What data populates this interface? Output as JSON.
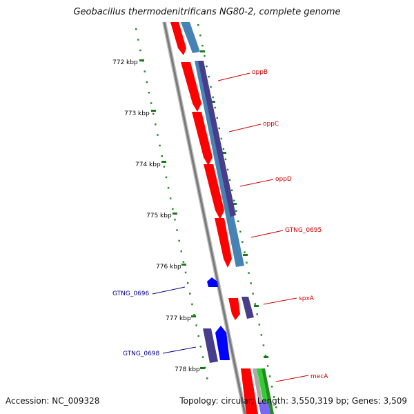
{
  "title": "Geobacillus thermodenitrificans NG80-2, complete genome",
  "accession": "Accession: NC_009328",
  "summary": "Topology: circular; Length: 3,550,319 bp; Genes: 3,509",
  "kbp_labels": [
    "772 kbp",
    "773 kbp",
    "774 kbp",
    "775 kbp",
    "776 kbp",
    "777 kbp",
    "778 kbp"
  ],
  "forward_genes": [
    {
      "name": "GTNG_0696",
      "color": "#00008b"
    },
    {
      "name": "GTNG_0698",
      "color": "#00008b"
    }
  ],
  "reverse_genes": [
    {
      "name": "oppB",
      "color": "#cc0000"
    },
    {
      "name": "oppC",
      "color": "#cc0000"
    },
    {
      "name": "oppD",
      "color": "#cc0000"
    },
    {
      "name": "GTNG_0695",
      "color": "#cc0000"
    },
    {
      "name": "spxA",
      "color": "#cc0000"
    },
    {
      "name": "mecA",
      "color": "#cc0000"
    }
  ],
  "colors": {
    "backbone": "#808080",
    "cds_reverse": "#ff0000",
    "cds_forward": "#0000ff",
    "cog_feature": "#483d8b",
    "blast_feature": "#4682b4",
    "tick": "#228b22"
  }
}
